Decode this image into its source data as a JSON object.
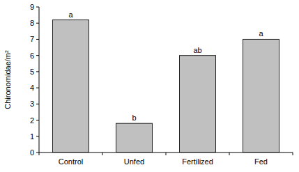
{
  "chart_data": {
    "type": "bar",
    "y_label": "Chironomidae/m²",
    "categories": [
      "Control",
      "Unfed",
      "Fertilized",
      "Fed"
    ],
    "values": [
      8.2,
      1.8,
      6.0,
      7.0
    ],
    "annotations": [
      "a",
      "b",
      "ab",
      "a"
    ],
    "color": "#c0c0c0",
    "ylim": [
      0,
      9
    ],
    "yticks": [
      0,
      1,
      2,
      3,
      4,
      5,
      6,
      7,
      8,
      9
    ],
    "grid": false
  }
}
